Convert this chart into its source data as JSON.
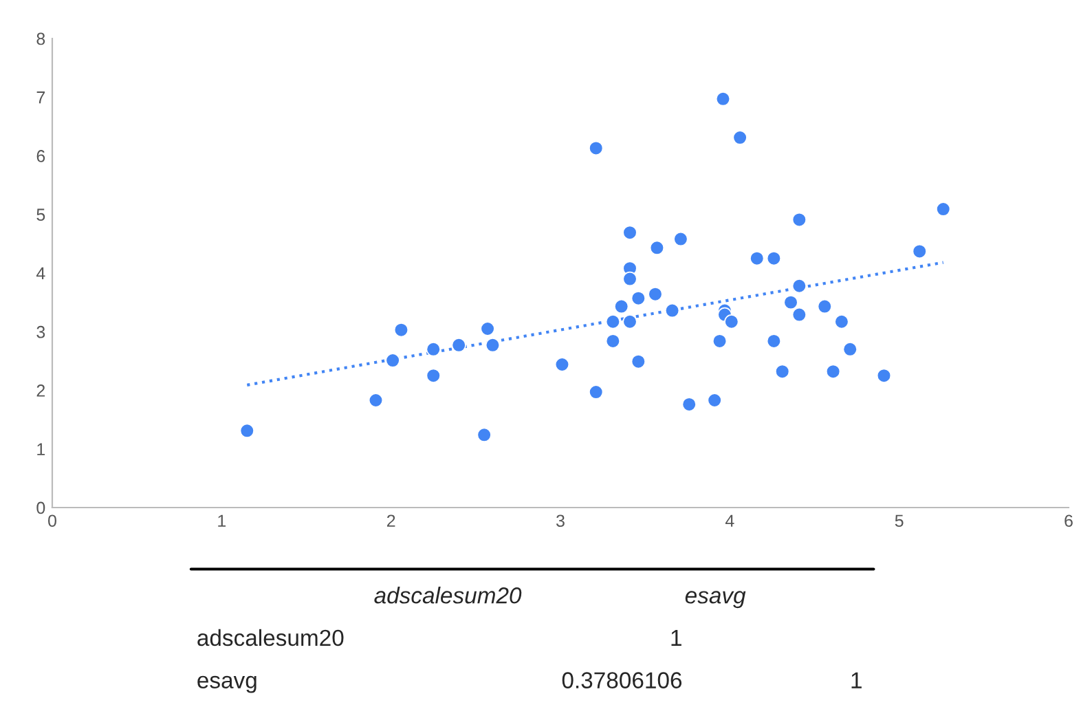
{
  "chart_data": {
    "type": "scatter",
    "series": [
      {
        "marker": "circle",
        "color": "#4285f4",
        "x": [
          1.15,
          1.91,
          2.01,
          2.06,
          2.25,
          2.25,
          2.4,
          2.57,
          2.55,
          2.6,
          3.01,
          3.21,
          3.21,
          3.31,
          3.31,
          3.36,
          3.41,
          3.41,
          3.41,
          3.41,
          3.46,
          3.46,
          3.56,
          3.57,
          3.66,
          3.71,
          3.76,
          3.91,
          3.94,
          3.96,
          3.97,
          3.97,
          4.01,
          4.06,
          4.16,
          4.26,
          4.26,
          4.31,
          4.36,
          4.41,
          4.41,
          4.41,
          4.56,
          4.61,
          4.66,
          4.71,
          4.91,
          5.12,
          5.26
        ],
        "values": [
          1.31,
          1.83,
          2.51,
          3.03,
          2.7,
          2.25,
          2.77,
          3.05,
          1.24,
          2.77,
          2.44,
          6.13,
          1.97,
          2.84,
          3.17,
          3.43,
          4.69,
          4.08,
          3.9,
          3.17,
          3.57,
          2.49,
          3.64,
          4.43,
          3.36,
          4.58,
          1.76,
          1.83,
          2.84,
          6.97,
          3.36,
          3.29,
          3.17,
          6.31,
          4.25,
          4.25,
          2.84,
          2.32,
          3.5,
          4.91,
          3.78,
          3.29,
          3.43,
          2.32,
          3.17,
          2.7,
          2.25,
          4.37,
          5.09
        ]
      },
      {
        "type": "line",
        "marker": "none",
        "color": "#4285f4",
        "line_style": "dotted",
        "x": [
          1.15,
          5.26
        ],
        "values": [
          2.09,
          4.18
        ]
      }
    ],
    "xlim": [
      0,
      6
    ],
    "xticks": [
      0,
      1,
      2,
      3,
      4,
      5,
      6
    ],
    "ylim": [
      0,
      8
    ],
    "yticks": [
      0,
      1,
      2,
      3,
      4,
      5,
      6,
      7,
      8
    ],
    "grid": false,
    "legend": false,
    "annotations": [
      "adscalesum20",
      "esavg",
      "adscalesum20",
      "1",
      "esavg",
      "0.37806106",
      "1"
    ]
  }
}
